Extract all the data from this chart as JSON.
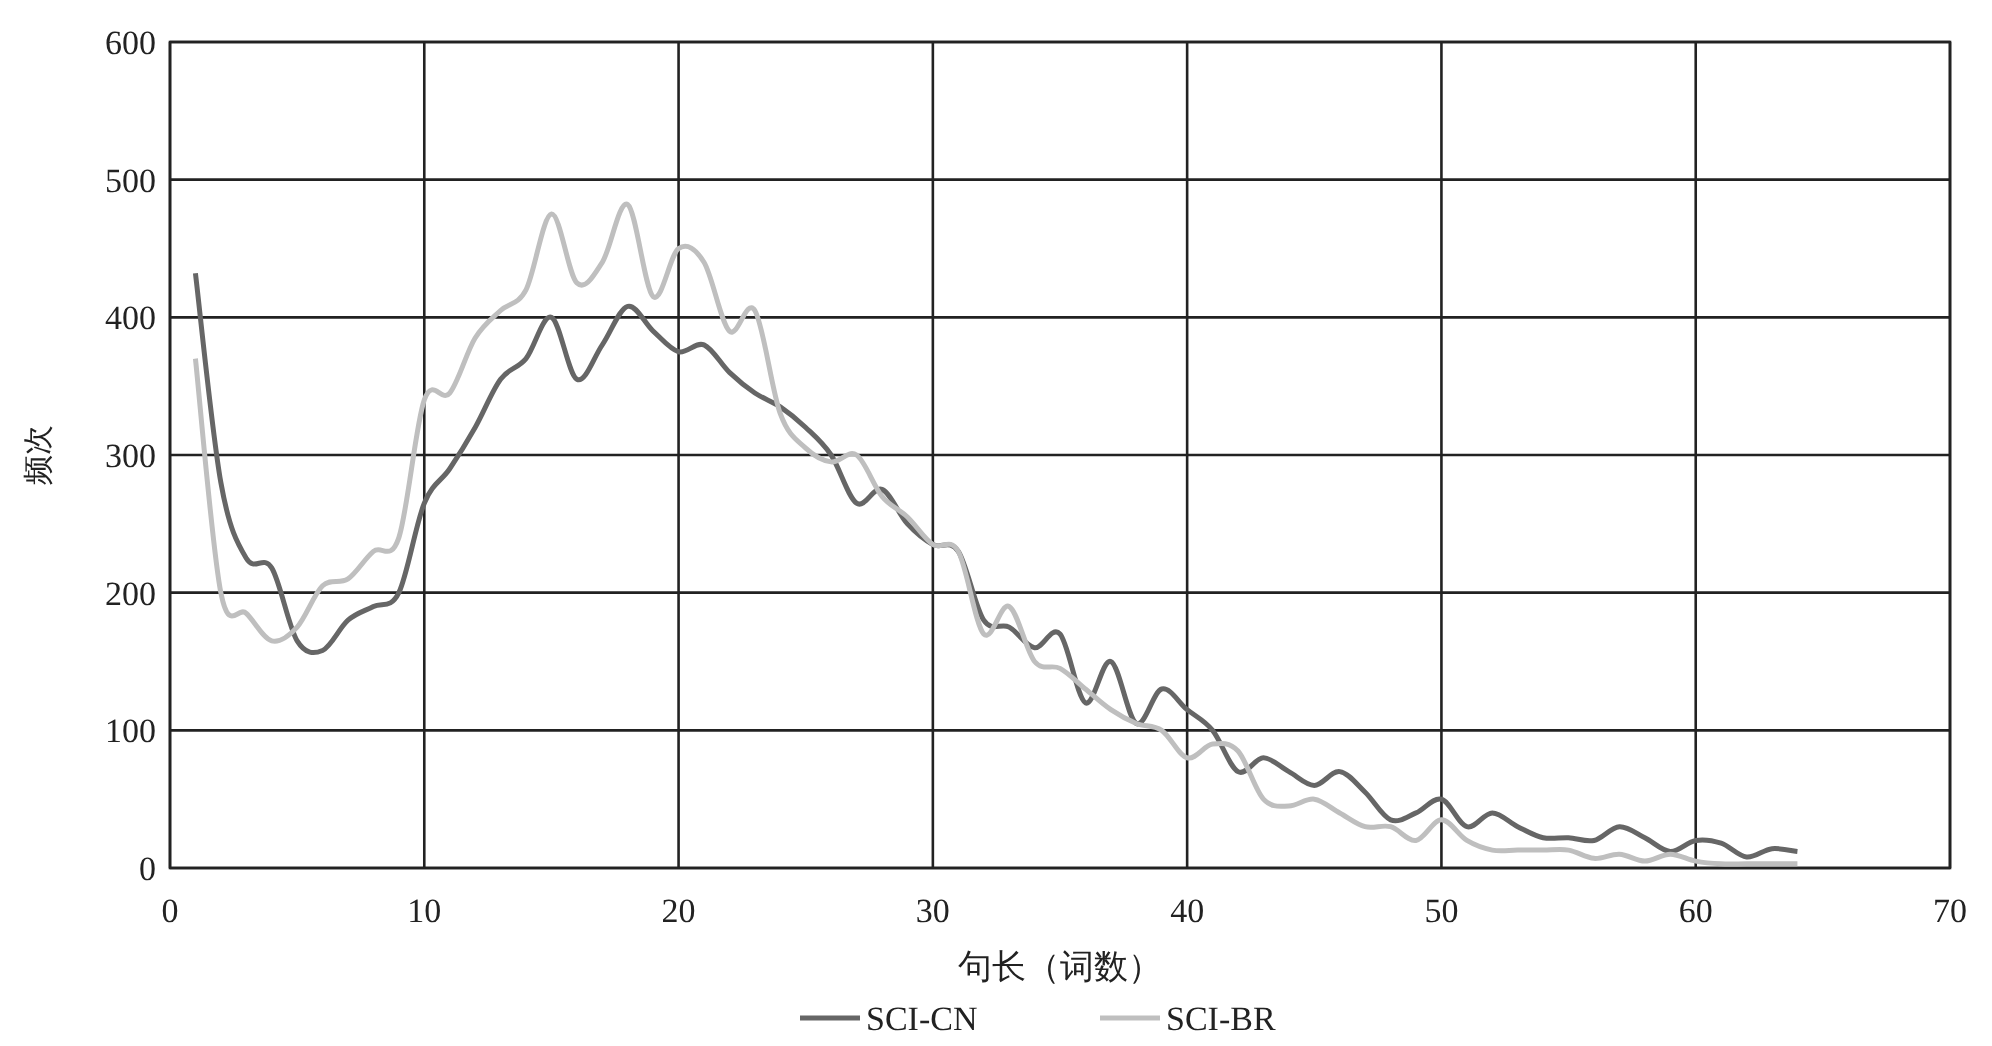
{
  "chart_data": {
    "type": "line",
    "xlabel": "句长（词数）",
    "ylabel": "频次",
    "xlim": [
      0,
      70
    ],
    "xticks": [
      0,
      10,
      20,
      30,
      40,
      50,
      60,
      70
    ],
    "ylim": [
      0,
      600
    ],
    "yticks": [
      0,
      100,
      200,
      300,
      400,
      500,
      600
    ],
    "grid": true,
    "legend": "bottom",
    "line_style": "solid",
    "marker": "none",
    "x": [
      1,
      2,
      3,
      4,
      5,
      6,
      7,
      8,
      9,
      10,
      11,
      12,
      13,
      14,
      15,
      16,
      17,
      18,
      19,
      20,
      21,
      22,
      23,
      24,
      25,
      26,
      27,
      28,
      29,
      30,
      31,
      32,
      33,
      34,
      35,
      36,
      37,
      38,
      39,
      40,
      41,
      42,
      43,
      44,
      45,
      46,
      47,
      48,
      49,
      50,
      51,
      52,
      53,
      54,
      55,
      56,
      57,
      58,
      59,
      60,
      61,
      62,
      63,
      64
    ],
    "series": [
      {
        "name": "SCI-CN",
        "color": "#666666",
        "values": [
          432,
          280,
          225,
          218,
          165,
          158,
          180,
          190,
          200,
          265,
          290,
          320,
          355,
          370,
          400,
          355,
          380,
          408,
          390,
          375,
          380,
          360,
          345,
          335,
          320,
          300,
          265,
          275,
          250,
          235,
          230,
          180,
          175,
          160,
          170,
          120,
          150,
          105,
          130,
          115,
          100,
          70,
          80,
          70,
          60,
          70,
          55,
          35,
          40,
          50,
          30,
          40,
          30,
          22,
          22,
          20,
          30,
          22,
          12,
          20,
          18,
          8,
          14,
          12
        ]
      },
      {
        "name": "SCI-BR",
        "color": "#bfbfbf",
        "values": [
          370,
          200,
          185,
          165,
          175,
          205,
          210,
          230,
          240,
          340,
          345,
          385,
          405,
          420,
          475,
          425,
          440,
          482,
          415,
          450,
          440,
          390,
          405,
          330,
          305,
          295,
          300,
          270,
          255,
          235,
          230,
          170,
          190,
          150,
          145,
          130,
          115,
          105,
          100,
          80,
          90,
          85,
          50,
          45,
          50,
          40,
          30,
          30,
          20,
          35,
          20,
          13,
          13,
          13,
          13,
          7,
          10,
          5,
          10,
          5,
          3,
          3,
          3,
          3
        ]
      }
    ]
  }
}
